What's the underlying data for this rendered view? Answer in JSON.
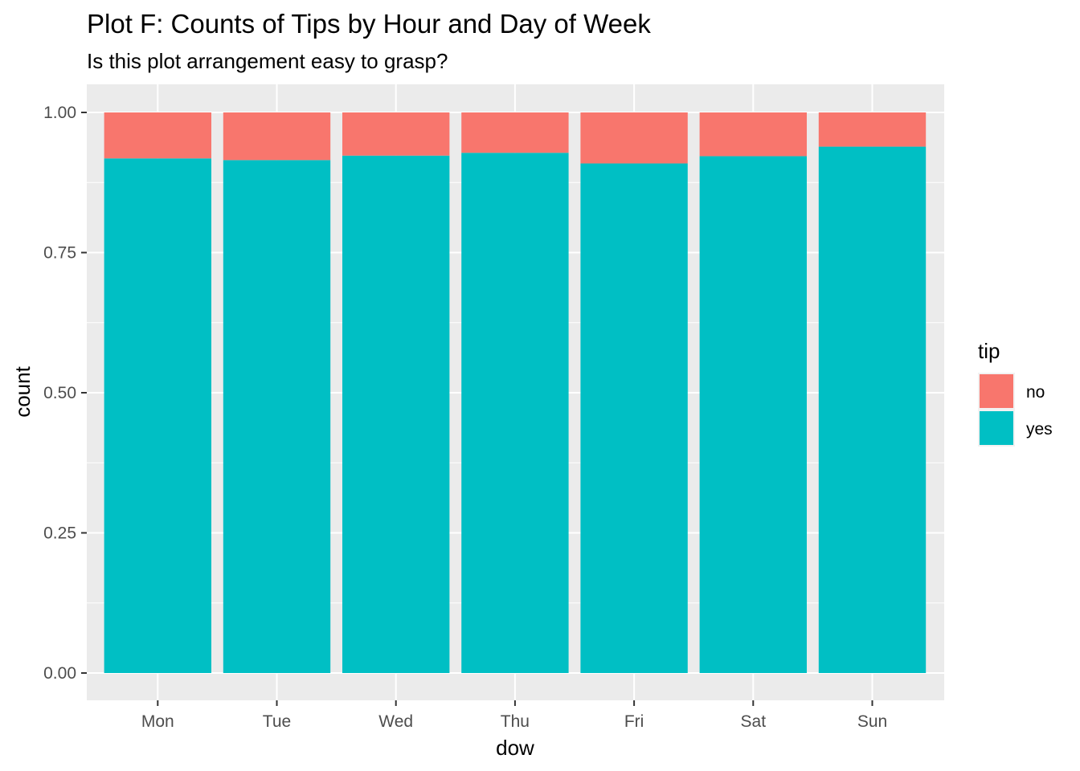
{
  "chart_data": {
    "type": "bar",
    "stacked": true,
    "title": "Plot F: Counts of Tips by Hour and Day of Week",
    "subtitle": "Is this plot arrangement easy to grasp?",
    "xlabel": "dow",
    "ylabel": "count",
    "categories": [
      "Mon",
      "Tue",
      "Wed",
      "Thu",
      "Fri",
      "Sat",
      "Sun"
    ],
    "ylim": [
      0,
      1
    ],
    "yticks": [
      0,
      0.25,
      0.5,
      0.75,
      1
    ],
    "ytick_labels": [
      "0.00",
      "0.25",
      "0.50",
      "0.75",
      "1.00"
    ],
    "series": [
      {
        "name": "no",
        "color": "#F8766D",
        "values": [
          0.082,
          0.085,
          0.077,
          0.072,
          0.091,
          0.078,
          0.061
        ]
      },
      {
        "name": "yes",
        "color": "#00BFC4",
        "values": [
          0.918,
          0.915,
          0.923,
          0.928,
          0.909,
          0.922,
          0.939
        ]
      }
    ],
    "legend": {
      "title": "tip",
      "position": "right"
    },
    "grid": true,
    "panel_background": "#EBEBEB",
    "grid_color": "#FFFFFF"
  }
}
